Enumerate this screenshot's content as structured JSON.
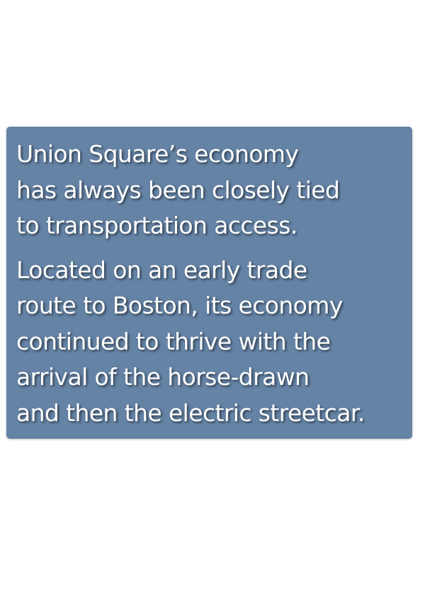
{
  "colors": {
    "panel_background": "#6583a5",
    "text": "#ffffff",
    "page_background": "#ffffff"
  },
  "paragraphs": [
    {
      "lines": [
        "Union Square’s economy",
        "has always been closely tied",
        "to transportation access."
      ]
    },
    {
      "lines": [
        "Located on an early trade",
        "route to Boston, its economy",
        "continued to thrive with the",
        "arrival of the horse-drawn",
        "and then the electric streetcar."
      ]
    }
  ]
}
